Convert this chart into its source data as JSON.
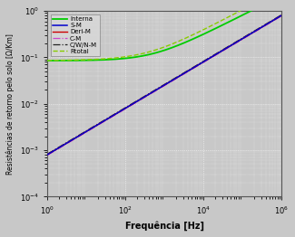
{
  "xlabel": "Frequência [Hz]",
  "ylabel": "Resistências de retorno pelo solo [Ω/Km]",
  "xlim": [
    1.0,
    1000000.0
  ],
  "ylim": [
    0.0001,
    1.0
  ],
  "legend": [
    "Interna",
    "S-M",
    "Deri-M",
    "C-M",
    "C/W/N-M",
    "Rtotal"
  ],
  "colors": {
    "Interna": "#00cc00",
    "S-M": "#0000cc",
    "Deri-M": "#cc0000",
    "C-M": "#cc44cc",
    "CWN": "#222222",
    "Rtotal": "#88cc00"
  },
  "R_interna_dc": 0.085,
  "skin_freq": 500.0,
  "R_soil_scale": 0.0008,
  "background_color": "#c8c8c8",
  "grid_color": "#ffffff"
}
